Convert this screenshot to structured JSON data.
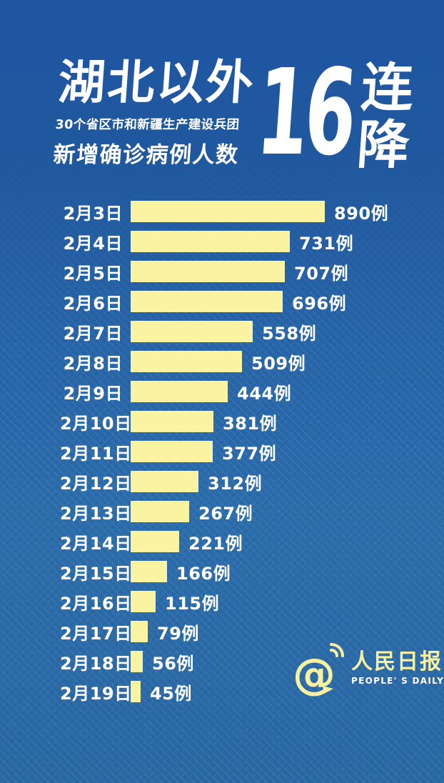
{
  "header": {
    "title": "湖北以外",
    "subtitle": "30个省区市和新疆生产建设兵团",
    "subtitle2": "新增确诊病例人数",
    "streak_number": "16",
    "streak_suffix": "连降"
  },
  "chart_data": {
    "type": "bar",
    "orientation": "horizontal",
    "title": "湖北以外新增确诊病例人数（30个省区市和新疆生产建设兵团）",
    "categories": [
      "2月3日",
      "2月4日",
      "2月5日",
      "2月6日",
      "2月7日",
      "2月8日",
      "2月9日",
      "2月10日",
      "2月11日",
      "2月12日",
      "2月13日",
      "2月14日",
      "2月15日",
      "2月16日",
      "2月17日",
      "2月18日",
      "2月19日"
    ],
    "values": [
      890,
      731,
      707,
      696,
      558,
      509,
      444,
      381,
      377,
      312,
      267,
      221,
      166,
      115,
      79,
      56,
      45
    ],
    "unit_suffix": "例",
    "xlim": [
      0,
      890
    ],
    "grid": false,
    "legend": "none",
    "bar_color": "#f9f3a2",
    "label_color": "#ffffff"
  },
  "footer": {
    "logo_cn": "人民日报",
    "logo_en": "PEOPLE' S DAILY"
  },
  "colors": {
    "bg_top": "#1e55a2",
    "bg_bottom": "#2a68a4",
    "bar_yellow": "#f9f3a2",
    "logo_yellow": "#f7f1a0",
    "text_white": "#ffffff"
  }
}
